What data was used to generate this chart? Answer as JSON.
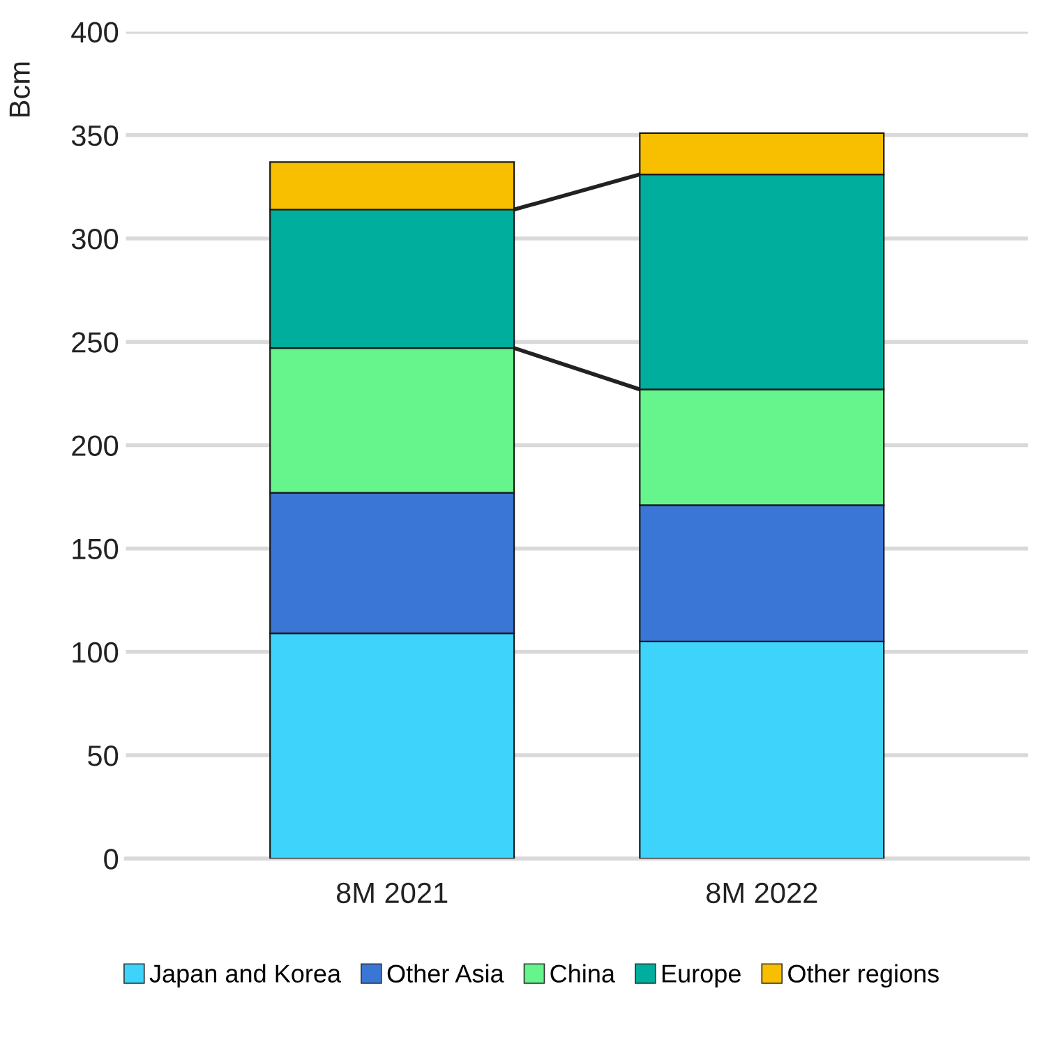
{
  "chart_data": {
    "type": "bar",
    "stacked": true,
    "ylabel": "Bcm",
    "categories": [
      "8M 2021",
      "8M 2022"
    ],
    "series": [
      {
        "name": "Japan and Korea",
        "color": "#3dd3fb",
        "values": [
          109,
          105
        ]
      },
      {
        "name": "Other Asia",
        "color": "#3a76d6",
        "values": [
          68,
          66
        ]
      },
      {
        "name": "China",
        "color": "#66f58c",
        "values": [
          70,
          56
        ]
      },
      {
        "name": "Europe",
        "color": "#00ae9e",
        "values": [
          67,
          104
        ]
      },
      {
        "name": "Other regions",
        "color": "#f8bf00",
        "values": [
          23,
          20
        ]
      }
    ],
    "ylim": [
      0,
      400
    ],
    "yticks": [
      0,
      50,
      100,
      150,
      200,
      250,
      300,
      350,
      400
    ],
    "grid": "y",
    "legend": "bottom"
  }
}
